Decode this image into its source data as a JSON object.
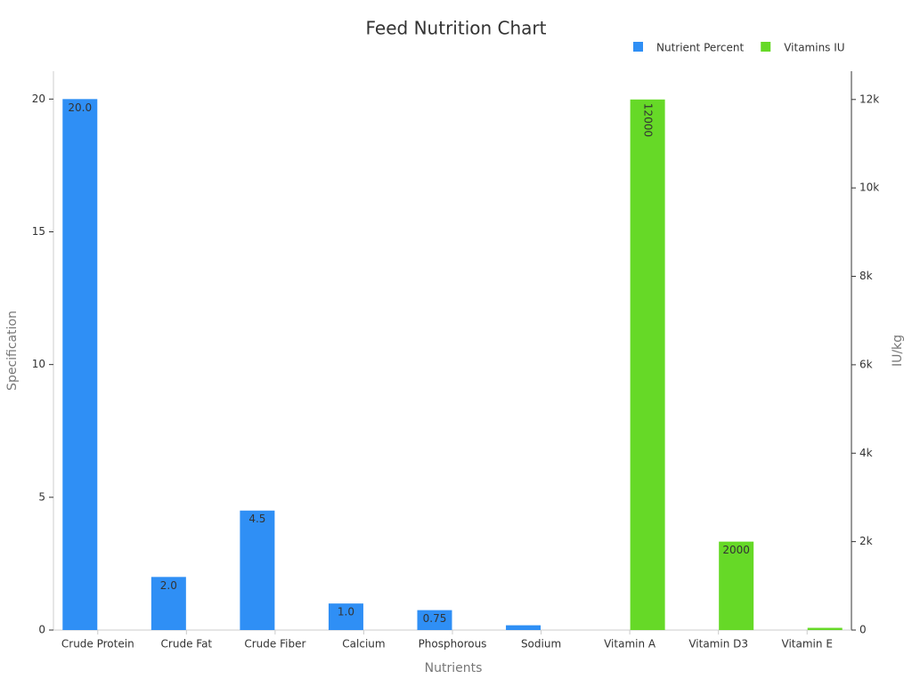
{
  "chart_data": {
    "type": "bar",
    "title": "Feed Nutrition Chart",
    "x_label": "Nutrients",
    "y_label": "Specification",
    "y2_label": "IU/kg",
    "categories": [
      "Crude Protein",
      "Crude Fat",
      "Crude Fiber",
      "Calcium",
      "Phosphorous",
      "Sodium",
      "Vitamin A",
      "Vitamin D3",
      "Vitamin E"
    ],
    "series": [
      {
        "name": "Nutrient Percent",
        "color": "#2f8ff5",
        "values": [
          20.0,
          2.0,
          4.5,
          1.0,
          0.75,
          0.18,
          null,
          null,
          null
        ],
        "value_labels": [
          "20.0",
          "2.0",
          "4.5",
          "1.0",
          "0.75",
          null,
          null,
          null,
          null
        ]
      },
      {
        "name": "Vitamins IU",
        "color": "#66d927",
        "axis": "y2",
        "values": [
          null,
          null,
          null,
          null,
          null,
          null,
          12000,
          2000,
          50
        ],
        "value_labels": [
          null,
          null,
          null,
          null,
          null,
          null,
          "12000",
          "2000",
          null
        ]
      }
    ],
    "ylim": [
      0,
      21.05
    ],
    "yticks": [
      0,
      5,
      10,
      15,
      20
    ],
    "y2lim": [
      0,
      12640
    ],
    "y2ticks": [
      0,
      {
        "value": 2000,
        "label": "2k"
      },
      {
        "value": 4000,
        "label": "4k"
      },
      {
        "value": 6000,
        "label": "6k"
      },
      {
        "value": 8000,
        "label": "8k"
      },
      {
        "value": 10000,
        "label": "10k"
      },
      {
        "value": 12000,
        "label": "12k"
      }
    ],
    "legend": "top-right"
  }
}
